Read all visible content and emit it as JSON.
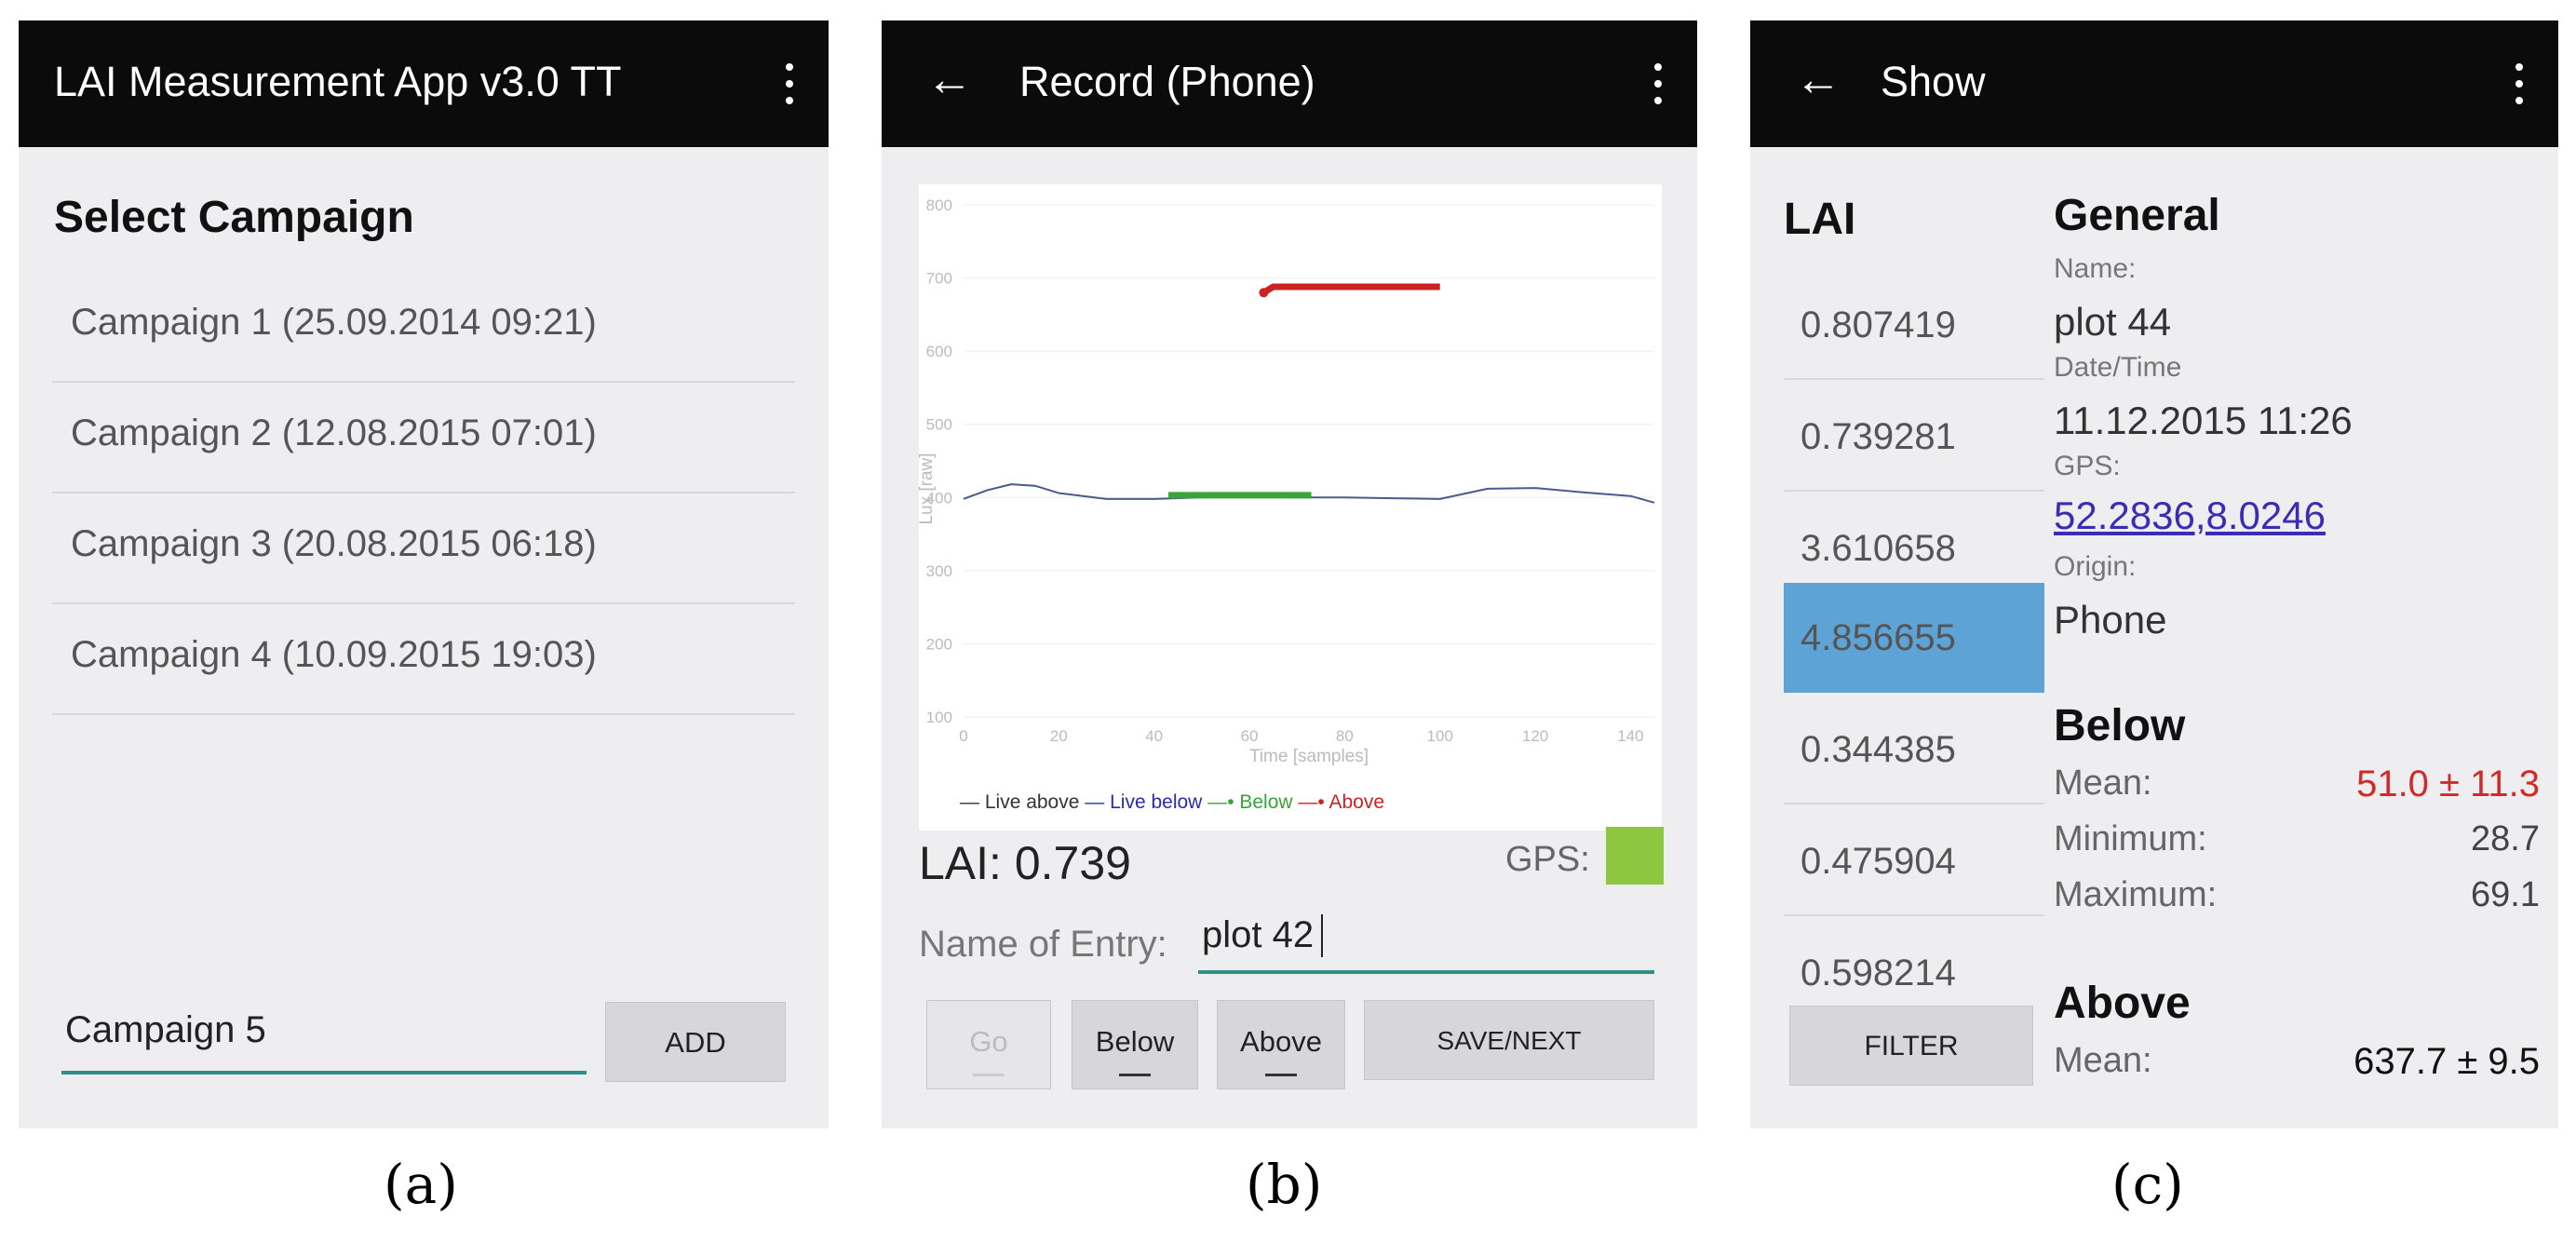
{
  "panel_a": {
    "app_title": "LAI Measurement App v3.0 TT",
    "heading": "Select Campaign",
    "campaigns": [
      "Campaign 1 (25.09.2014 09:21)",
      "Campaign 2 (12.08.2015 07:01)",
      "Campaign 3 (20.08.2015 06:18)",
      "Campaign 4 (10.09.2015 19:03)"
    ],
    "new_campaign_value": "Campaign 5",
    "add_label": "ADD"
  },
  "panel_b": {
    "title": "Record (Phone)",
    "chart": {
      "y_ticks": [
        "800",
        "700",
        "600",
        "500",
        "400",
        "300",
        "200",
        "100"
      ],
      "x_ticks": [
        "0",
        "20",
        "40",
        "60",
        "80",
        "100",
        "120",
        "140"
      ],
      "xlabel": "Time [samples]",
      "ylabel": "Lux [raw]",
      "legend": [
        "Live above",
        "Live below",
        "Below",
        "Above"
      ]
    },
    "lai_label": "LAI: 0.739",
    "gps_label": "GPS:",
    "gps_color": "#8dc63f",
    "entry_label": "Name of Entry:",
    "entry_value": "plot 42",
    "buttons": {
      "go": "Go",
      "below": "Below",
      "above": "Above",
      "save": "SAVE/NEXT"
    }
  },
  "panel_c": {
    "title": "Show",
    "lai_header": "LAI",
    "lai_values": [
      "0.807419",
      "0.739281",
      "3.610658",
      "4.856655",
      "0.344385",
      "0.475904",
      "0.598214"
    ],
    "selected_index": 3,
    "filter_label": "FILTER",
    "general": {
      "heading": "General",
      "name_label": "Name:",
      "name_value": "plot 44",
      "datetime_label": "Date/Time",
      "datetime_value": "11.12.2015 11:26",
      "gps_label": "GPS:",
      "gps_value": "52.2836,8.0246",
      "origin_label": "Origin:",
      "origin_value": "Phone"
    },
    "below": {
      "heading": "Below",
      "mean_label": "Mean:",
      "mean_value": "51.0 ± 11.3",
      "min_label": "Minimum:",
      "min_value": "28.7",
      "max_label": "Maximum:",
      "max_value": "69.1"
    },
    "above": {
      "heading": "Above",
      "mean_label": "Mean:",
      "mean_value": "637.7 ± 9.5"
    }
  },
  "captions": [
    "(a)",
    "(b)",
    "(c)"
  ],
  "chart_data": {
    "type": "line",
    "xlabel": "Time [samples]",
    "ylabel": "Lux [raw]",
    "xlim": [
      0,
      145
    ],
    "ylim": [
      100,
      800
    ],
    "series": [
      {
        "name": "Live below",
        "color": "#4a5a8c",
        "x": [
          0,
          5,
          10,
          15,
          20,
          30,
          40,
          50,
          60,
          70,
          80,
          90,
          100,
          105,
          110,
          120,
          130,
          140,
          145
        ],
        "y": [
          398,
          410,
          418,
          416,
          406,
          398,
          398,
          400,
          401,
          400,
          400,
          399,
          398,
          405,
          412,
          413,
          407,
          402,
          393
        ]
      },
      {
        "name": "Below",
        "color": "#3aa33a",
        "x": [
          43,
          73
        ],
        "y": [
          403,
          403
        ]
      },
      {
        "name": "Above",
        "color": "#cc2222",
        "x": [
          63,
          65,
          100
        ],
        "y": [
          680,
          688,
          688
        ]
      }
    ]
  }
}
